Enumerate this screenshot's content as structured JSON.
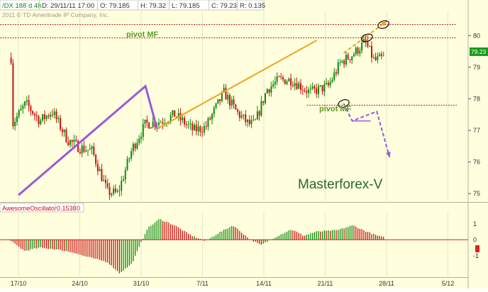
{
  "header": {
    "symbol": "/DX 188 d 4h",
    "date": "D: 29/11/11 17:00",
    "open": "O: 79.185",
    "high": "H: 79.32",
    "low": "L: 79.185",
    "close": "C: 79.23",
    "range": "R: 0.135"
  },
  "copyright": "2011 © TD Ameritrade IP Company, Inc.",
  "watermark": "Masterforex-V",
  "annotations": {
    "pivot_top": "pivot MF",
    "pivot_mid": "pivot MF"
  },
  "last_price_label": "79.23",
  "oscillator": {
    "name": "AwesomeOscillator",
    "value": "0.1538",
    "zero": "0"
  },
  "colors": {
    "background": "#ffffde",
    "bull": "#0a8a0a",
    "bear": "#cc1111",
    "pivot_line": "#b01818",
    "purple": "#9a5ad8",
    "orange": "#f5a020",
    "annotation_text": "#5a9a2a",
    "zero_line": "#e02020"
  },
  "chart_data": [
    {
      "type": "candlestick",
      "series": [
        {
          "name": "/DX 188 d 4h"
        }
      ],
      "x_ticks": [
        "17/10",
        "24/10",
        "31/10",
        "7/11",
        "14/11",
        "21/11",
        "28/11",
        "5/12"
      ],
      "y_ticks": [
        75,
        76,
        77,
        78,
        79,
        80
      ],
      "ylim": [
        74.8,
        80.5
      ],
      "pivot_levels": [
        80.35,
        79.93,
        77.8
      ],
      "last_price": 79.23,
      "wave_path_purple": [
        [
          0.0,
          74.95
        ],
        [
          2.07,
          78.4
        ],
        [
          2.26,
          77.05
        ]
      ],
      "projection_purple": [
        [
          5.3,
          77.85
        ],
        [
          5.44,
          77.3
        ],
        [
          5.84,
          77.6
        ],
        [
          6.05,
          76.15
        ]
      ],
      "line_orange": [
        [
          2.26,
          77.05
        ],
        [
          4.86,
          79.85
        ]
      ],
      "projection_orange": [
        [
          5.3,
          79.45
        ],
        [
          6.0,
          80.45
        ]
      ]
    },
    {
      "type": "bar",
      "name": "AwesomeOscillator",
      "value": 0.1538,
      "ylim": [
        -2.3,
        1.7
      ],
      "y_ticks": [
        -1,
        0,
        1
      ]
    }
  ]
}
